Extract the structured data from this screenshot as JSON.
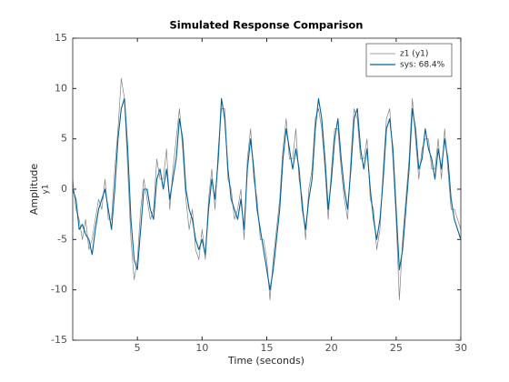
{
  "chart_data": {
    "type": "line",
    "title": "Simulated Response Comparison",
    "x_label": "Time (seconds)",
    "y_label": "Amplitude",
    "y_sublabel": "y1",
    "x": [
      0,
      0.25,
      0.5,
      0.75,
      1,
      1.25,
      1.5,
      1.75,
      2,
      2.25,
      2.5,
      2.75,
      3,
      3.25,
      3.5,
      3.75,
      4,
      4.25,
      4.5,
      4.75,
      5,
      5.25,
      5.5,
      5.75,
      6,
      6.25,
      6.5,
      6.75,
      7,
      7.25,
      7.5,
      7.75,
      8,
      8.25,
      8.5,
      8.75,
      9,
      9.25,
      9.5,
      9.75,
      10,
      10.25,
      10.5,
      10.75,
      11,
      11.25,
      11.5,
      11.75,
      12,
      12.25,
      12.5,
      12.75,
      13,
      13.25,
      13.5,
      13.75,
      14,
      14.25,
      14.5,
      14.75,
      15,
      15.25,
      15.5,
      15.75,
      16,
      16.25,
      16.5,
      16.75,
      17,
      17.25,
      17.5,
      17.75,
      18,
      18.25,
      18.5,
      18.75,
      19,
      19.25,
      19.5,
      19.75,
      20,
      20.25,
      20.5,
      20.75,
      21,
      21.25,
      21.5,
      21.75,
      22,
      22.25,
      22.5,
      22.75,
      23,
      23.25,
      23.5,
      23.75,
      24,
      24.25,
      24.5,
      24.75,
      25,
      25.25,
      25.5,
      25.75,
      26,
      26.25,
      26.5,
      26.75,
      27,
      27.25,
      27.5,
      27.75,
      28,
      28.25,
      28.5,
      28.75,
      29,
      29.25,
      29.5,
      29.75,
      30
    ],
    "series": [
      {
        "name": "z1 (y1)",
        "color": "#808080",
        "values": [
          1,
          -2,
          -3,
          -5,
          -3,
          -6,
          -5,
          -3,
          -1,
          -2,
          1,
          -3,
          -3,
          2,
          6,
          11,
          9,
          2,
          -5,
          -9,
          -7,
          -2,
          1,
          -1,
          -3,
          -2,
          3,
          1,
          1,
          4,
          -2,
          2,
          5,
          8,
          4,
          -1,
          -4,
          -2,
          -6,
          -7,
          -4,
          -7,
          -1,
          2,
          -2,
          4,
          8,
          8,
          1,
          0,
          -3,
          -2,
          0,
          -5,
          3,
          6,
          1,
          -1,
          -5,
          -5,
          -7,
          -11,
          -7,
          -4,
          -1,
          4,
          7,
          3,
          3,
          6,
          1,
          -1,
          -5,
          0,
          2,
          7,
          8,
          6,
          2,
          -3,
          2,
          6,
          6,
          2,
          -1,
          -3,
          3,
          8,
          7,
          3,
          3,
          5,
          -1,
          -2,
          -6,
          -4,
          2,
          7,
          8,
          3,
          -3,
          -11,
          -5,
          -1,
          3,
          9,
          5,
          1,
          4,
          5,
          5,
          2,
          2,
          5,
          1,
          6,
          2,
          -2,
          -2,
          -3,
          -4
        ]
      },
      {
        "name": "sys: 68.4%",
        "color": "#00639a",
        "values": [
          0,
          -1,
          -4,
          -3.5,
          -4.5,
          -5,
          -6.5,
          -4,
          -2,
          -1,
          0,
          -2,
          -4,
          0,
          5,
          8,
          9,
          4,
          -3,
          -7,
          -8,
          -4,
          0,
          0,
          -2,
          -3,
          1,
          2,
          0,
          2,
          -1,
          1,
          3,
          7,
          5,
          0,
          -2,
          -3,
          -5,
          -6,
          -5,
          -6.5,
          -2,
          1,
          -1,
          3,
          9,
          7,
          2,
          -1,
          -2,
          -3,
          -1,
          -4,
          2,
          5,
          2,
          -2,
          -4,
          -6,
          -8,
          -10,
          -8,
          -5,
          -2,
          3,
          6,
          4,
          2,
          4,
          2,
          -2,
          -4,
          -1,
          1,
          6,
          9,
          7,
          3,
          -2,
          1,
          5,
          7,
          3,
          0,
          -2,
          2,
          7,
          8,
          4,
          2,
          4,
          0,
          -3,
          -5,
          -3,
          1,
          6,
          7,
          4,
          -2,
          -8,
          -6,
          -2,
          2,
          8,
          6,
          2,
          3,
          6,
          4,
          3,
          1,
          4,
          2,
          5,
          3,
          -1,
          -3,
          -4,
          -5
        ]
      }
    ],
    "xlim": [
      0,
      30
    ],
    "xticks": [
      5,
      10,
      15,
      20,
      25,
      30
    ],
    "ylim": [
      -15,
      15
    ],
    "yticks": [
      -15,
      -10,
      -5,
      0,
      5,
      10,
      15
    ],
    "legend": "upper right"
  }
}
